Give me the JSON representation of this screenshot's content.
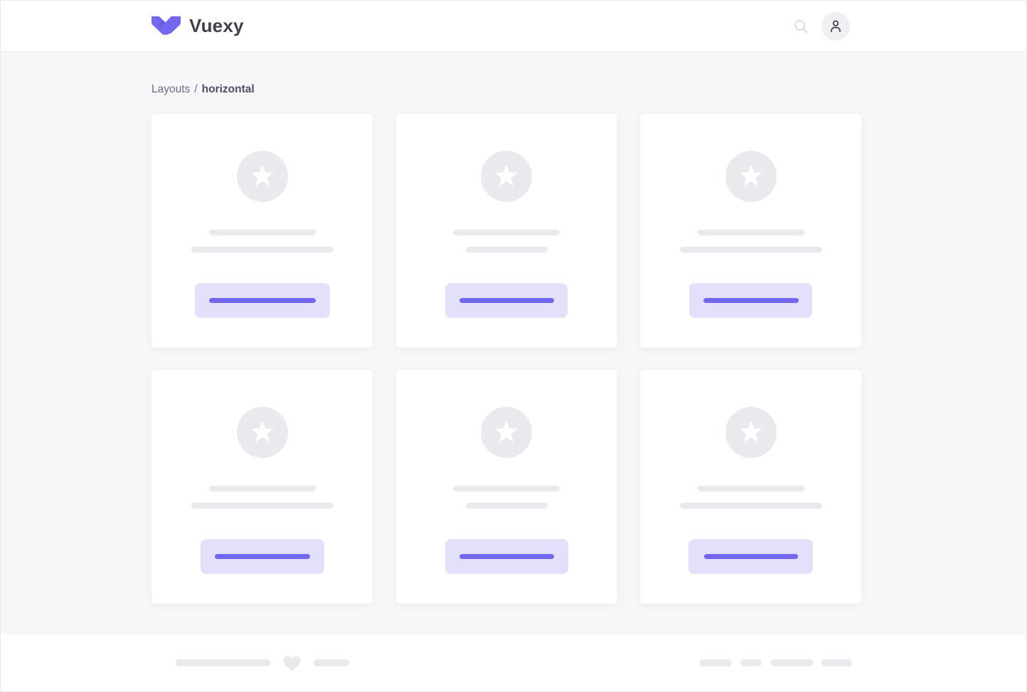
{
  "header": {
    "logo": {
      "label": "Vuexy",
      "icon": "vuexy-logo-icon"
    },
    "actions": [
      {
        "icon": "search-icon"
      },
      {
        "icon": "user-avatar-icon"
      }
    ]
  },
  "breadcrumb": {
    "items": [
      {
        "label": "Layouts",
        "active": false
      },
      {
        "label": "horizontal",
        "active": true
      }
    ],
    "separator": "/"
  },
  "main": {
    "cards": [
      {
        "icon": "star-icon",
        "line_widths": [
          150,
          200
        ],
        "button_width": 190,
        "button_bar_width": 150
      },
      {
        "icon": "star-icon",
        "line_widths": [
          150,
          115
        ],
        "button_width": 172,
        "button_bar_width": 133
      },
      {
        "icon": "star-icon",
        "line_widths": [
          150,
          200
        ],
        "button_width": 173,
        "button_bar_width": 134
      },
      {
        "icon": "star-icon",
        "line_widths": [
          150,
          200
        ],
        "button_width": 174,
        "button_bar_width": 134
      },
      {
        "icon": "star-icon",
        "line_widths": [
          150,
          115
        ],
        "button_width": 173,
        "button_bar_width": 133
      },
      {
        "icon": "star-icon",
        "line_widths": [
          150,
          200
        ],
        "button_width": 175,
        "button_bar_width": 132
      }
    ]
  },
  "footer": {
    "left_bar_widths": [
      133,
      50
    ],
    "heart": "heart-icon",
    "right_bar_widths": [
      45,
      30,
      59,
      43
    ]
  },
  "colors": {
    "primary": "#7367f0",
    "primary_soft": "#e3e0fb",
    "placeholder": "#e9eaee",
    "body_bg": "#f7f7f9",
    "heading": "#433e52",
    "heading_soft": "#514b68",
    "text_muted": "#6d6a80",
    "page_border": "#e8e8ee",
    "navbar_border": "#edeef3",
    "avatar_bg": "#eef0f2",
    "search_icon": "#d7d8de",
    "user_icon": "#4b4b5c"
  }
}
